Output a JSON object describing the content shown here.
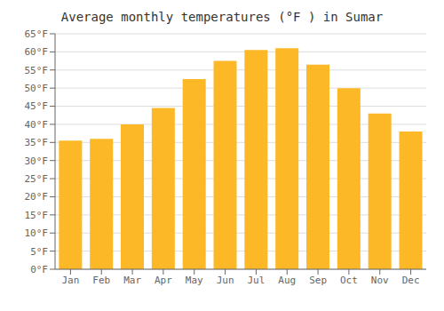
{
  "chart_data": {
    "type": "bar",
    "title": "Average monthly temperatures (°F ) in Sumar",
    "categories": [
      "Jan",
      "Feb",
      "Mar",
      "Apr",
      "May",
      "Jun",
      "Jul",
      "Aug",
      "Sep",
      "Oct",
      "Nov",
      "Dec"
    ],
    "values": [
      35.5,
      36.0,
      40.0,
      44.5,
      52.5,
      57.5,
      60.5,
      61.0,
      56.5,
      50.0,
      43.0,
      38.0
    ],
    "color": "#FDB827",
    "ylim": [
      0,
      65
    ],
    "yticks": [
      {
        "value": 0,
        "label": "0°F"
      },
      {
        "value": 5,
        "label": "5°F"
      },
      {
        "value": 10,
        "label": "10°F"
      },
      {
        "value": 15,
        "label": "15°F"
      },
      {
        "value": 20,
        "label": "20°F"
      },
      {
        "value": 25,
        "label": "25°F"
      },
      {
        "value": 30,
        "label": "30°F"
      },
      {
        "value": 35,
        "label": "35°F"
      },
      {
        "value": 40,
        "label": "40°F"
      },
      {
        "value": 45,
        "label": "45°F"
      },
      {
        "value": 50,
        "label": "50°F"
      },
      {
        "value": 55,
        "label": "55°F"
      },
      {
        "value": 60,
        "label": "60°F"
      },
      {
        "value": 65,
        "label": "65°F"
      }
    ],
    "grid": true
  }
}
